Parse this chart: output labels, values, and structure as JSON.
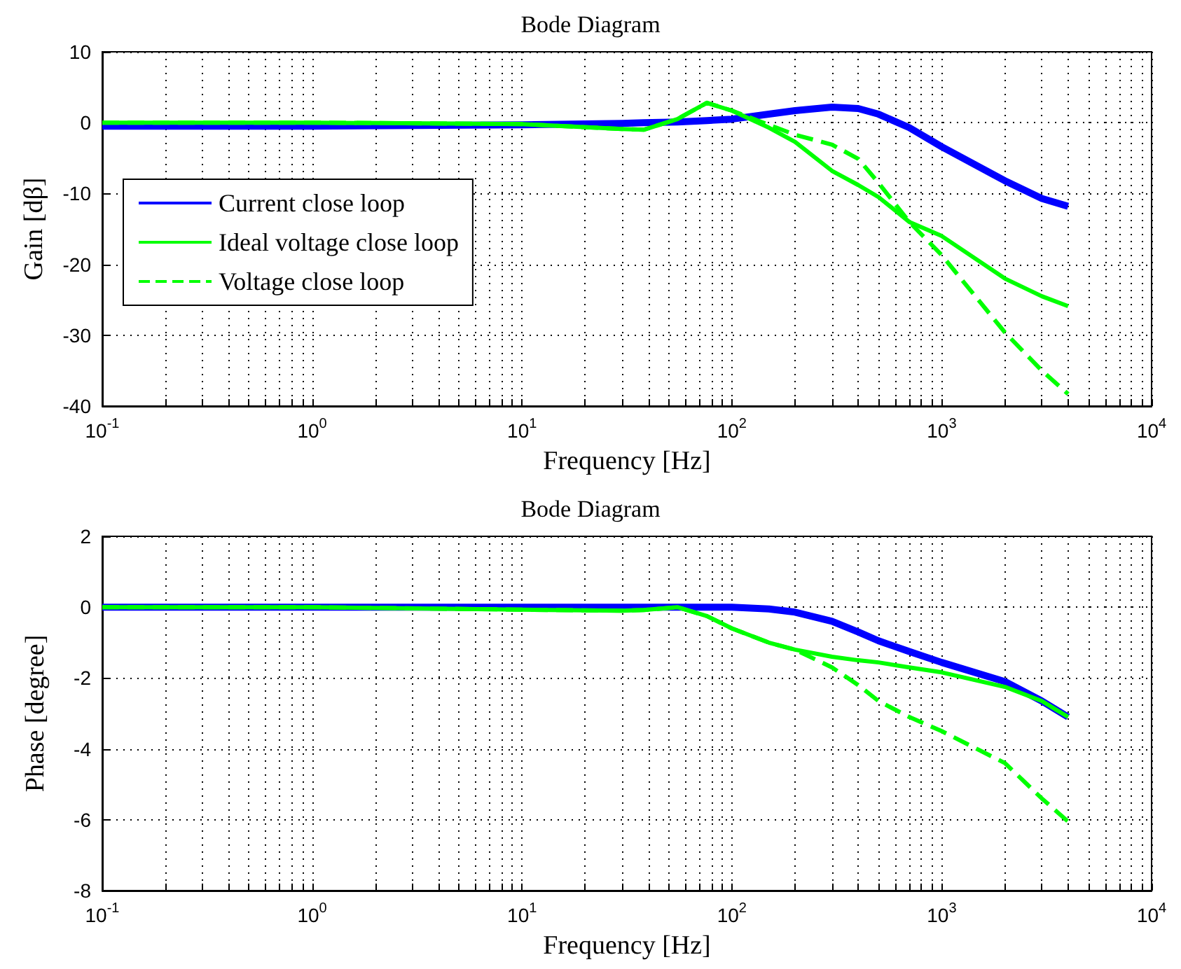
{
  "chart_data": [
    {
      "type": "line",
      "title": "Bode Diagram",
      "xlabel": "Frequency [Hz]",
      "ylabel": "Gain [dβ]",
      "log": "x",
      "grid": true,
      "legend": "center left",
      "marker": "none",
      "xlim": [
        0.1,
        10000
      ],
      "ylim": [
        -40,
        10
      ],
      "yticks": [
        -40,
        -30,
        -20,
        -10,
        0,
        10
      ],
      "xticks": [
        {
          "value": 0.1,
          "label": "10$^{-1}$"
        },
        {
          "value": 0.2,
          "label": null
        },
        {
          "value": 0.3,
          "label": null
        },
        {
          "value": 0.4,
          "label": null
        },
        {
          "value": 0.5,
          "label": null
        },
        {
          "value": 0.6,
          "label": null
        },
        {
          "value": 0.7,
          "label": null
        },
        {
          "value": 0.8,
          "label": null
        },
        {
          "value": 0.9,
          "label": null
        },
        {
          "value": 1,
          "label": "10$^{0}$"
        },
        {
          "value": 2,
          "label": null
        },
        {
          "value": 3,
          "label": null
        },
        {
          "value": 4,
          "label": null
        },
        {
          "value": 5,
          "label": null
        },
        {
          "value": 6,
          "label": null
        },
        {
          "value": 7,
          "label": null
        },
        {
          "value": 8,
          "label": null
        },
        {
          "value": 9,
          "label": null
        },
        {
          "value": 10,
          "label": "10$^{1}$"
        },
        {
          "value": 20,
          "label": null
        },
        {
          "value": 30,
          "label": null
        },
        {
          "value": 40,
          "label": null
        },
        {
          "value": 50,
          "label": null
        },
        {
          "value": 60,
          "label": null
        },
        {
          "value": 70,
          "label": null
        },
        {
          "value": 80,
          "label": null
        },
        {
          "value": 90,
          "label": null
        },
        {
          "value": 100,
          "label": "10$^{2}$"
        },
        {
          "value": 200,
          "label": null
        },
        {
          "value": 300,
          "label": null
        },
        {
          "value": 400,
          "label": null
        },
        {
          "value": 500,
          "label": null
        },
        {
          "value": 600,
          "label": null
        },
        {
          "value": 700,
          "label": null
        },
        {
          "value": 800,
          "label": null
        },
        {
          "value": 900,
          "label": null
        },
        {
          "value": 1000,
          "label": "10$^{3}$"
        },
        {
          "value": 2000,
          "label": null
        },
        {
          "value": 3000,
          "label": null
        },
        {
          "value": 4000,
          "label": null
        },
        {
          "value": 5000,
          "label": null
        },
        {
          "value": 6000,
          "label": null
        },
        {
          "value": 7000,
          "label": null
        },
        {
          "value": 8000,
          "label": null
        },
        {
          "value": 9000,
          "label": null
        },
        {
          "value": 10000,
          "label": "10$^{4}$"
        }
      ],
      "x": [
        0.1,
        1,
        10,
        30,
        38,
        55,
        76,
        100,
        150,
        200,
        300,
        400,
        500,
        700,
        1000,
        2000,
        3000,
        4000
      ],
      "series": [
        {
          "name": "Current close loop",
          "color": "#0000ff",
          "line_style": "solid",
          "values": [
            -0.5,
            -0.5,
            -0.3,
            -0.1,
            0,
            0.1,
            0.3,
            0.5,
            1.2,
            1.7,
            2.2,
            2.0,
            1.2,
            -0.7,
            -3.4,
            -8.2,
            -10.7,
            -11.8
          ]
        },
        {
          "name": "Ideal voltage close loop",
          "color": "#00ff00",
          "line_style": "solid",
          "values": [
            0,
            0,
            -0.2,
            -0.9,
            -1.0,
            0.5,
            2.8,
            1.7,
            -0.7,
            -2.7,
            -6.8,
            -8.8,
            -10.5,
            -14,
            -16,
            -22,
            -24.5,
            -25.9
          ]
        },
        {
          "name": "Voltage close loop",
          "color": "#00ff00",
          "line_style": "dashed",
          "values": [
            0,
            0,
            -0.2,
            -0.9,
            -1.0,
            0.5,
            2.8,
            1.7,
            -0.3,
            -1.7,
            -3.1,
            -5.1,
            -8.5,
            -14,
            -18.7,
            -29.6,
            -35,
            -38.3
          ]
        }
      ]
    },
    {
      "type": "line",
      "title": "Bode Diagram",
      "xlabel": "Frequency [Hz]",
      "ylabel": "Phase [degree]",
      "log": "x",
      "grid": true,
      "legend": false,
      "marker": "none",
      "xlim": [
        0.1,
        10000
      ],
      "ylim": [
        -8,
        2
      ],
      "yticks": [
        -8,
        -6,
        -4,
        -2,
        0,
        2
      ],
      "xticks": [
        {
          "value": 0.1,
          "label": "10$^{-1}$"
        },
        {
          "value": 0.2,
          "label": null
        },
        {
          "value": 0.3,
          "label": null
        },
        {
          "value": 0.4,
          "label": null
        },
        {
          "value": 0.5,
          "label": null
        },
        {
          "value": 0.6,
          "label": null
        },
        {
          "value": 0.7,
          "label": null
        },
        {
          "value": 0.8,
          "label": null
        },
        {
          "value": 0.9,
          "label": null
        },
        {
          "value": 1,
          "label": "10$^{0}$"
        },
        {
          "value": 2,
          "label": null
        },
        {
          "value": 3,
          "label": null
        },
        {
          "value": 4,
          "label": null
        },
        {
          "value": 5,
          "label": null
        },
        {
          "value": 6,
          "label": null
        },
        {
          "value": 7,
          "label": null
        },
        {
          "value": 8,
          "label": null
        },
        {
          "value": 9,
          "label": null
        },
        {
          "value": 10,
          "label": "10$^{1}$"
        },
        {
          "value": 20,
          "label": null
        },
        {
          "value": 30,
          "label": null
        },
        {
          "value": 40,
          "label": null
        },
        {
          "value": 50,
          "label": null
        },
        {
          "value": 60,
          "label": null
        },
        {
          "value": 70,
          "label": null
        },
        {
          "value": 80,
          "label": null
        },
        {
          "value": 90,
          "label": null
        },
        {
          "value": 100,
          "label": "10$^{2}$"
        },
        {
          "value": 200,
          "label": null
        },
        {
          "value": 300,
          "label": null
        },
        {
          "value": 400,
          "label": null
        },
        {
          "value": 500,
          "label": null
        },
        {
          "value": 600,
          "label": null
        },
        {
          "value": 700,
          "label": null
        },
        {
          "value": 800,
          "label": null
        },
        {
          "value": 900,
          "label": null
        },
        {
          "value": 1000,
          "label": "10$^{3}$"
        },
        {
          "value": 2000,
          "label": null
        },
        {
          "value": 3000,
          "label": null
        },
        {
          "value": 4000,
          "label": null
        },
        {
          "value": 5000,
          "label": null
        },
        {
          "value": 6000,
          "label": null
        },
        {
          "value": 7000,
          "label": null
        },
        {
          "value": 8000,
          "label": null
        },
        {
          "value": 9000,
          "label": null
        },
        {
          "value": 10000,
          "label": "10$^{4}$"
        }
      ],
      "x": [
        0.1,
        1,
        10,
        30,
        38,
        55,
        76,
        100,
        150,
        200,
        300,
        400,
        500,
        700,
        1000,
        2000,
        3000,
        4000
      ],
      "series": [
        {
          "color": "#0000ff",
          "line_style": "solid",
          "values": [
            0,
            0,
            0,
            0,
            0,
            0,
            0,
            0,
            -0.05,
            -0.14,
            -0.4,
            -0.7,
            -0.95,
            -1.25,
            -1.56,
            -2.1,
            -2.65,
            -3.1
          ]
        },
        {
          "color": "#00ff00",
          "line_style": "solid",
          "values": [
            0,
            0,
            -0.07,
            -0.1,
            -0.08,
            0,
            -0.25,
            -0.6,
            -1.0,
            -1.2,
            -1.4,
            -1.5,
            -1.56,
            -1.7,
            -1.84,
            -2.25,
            -2.65,
            -3.1
          ]
        },
        {
          "color": "#00ff00",
          "line_style": "dashed",
          "values": [
            0,
            0,
            -0.07,
            -0.1,
            -0.08,
            0,
            -0.25,
            -0.6,
            -1.0,
            -1.2,
            -1.7,
            -2.2,
            -2.65,
            -3.1,
            -3.5,
            -4.4,
            -5.4,
            -6.05
          ]
        }
      ]
    }
  ]
}
